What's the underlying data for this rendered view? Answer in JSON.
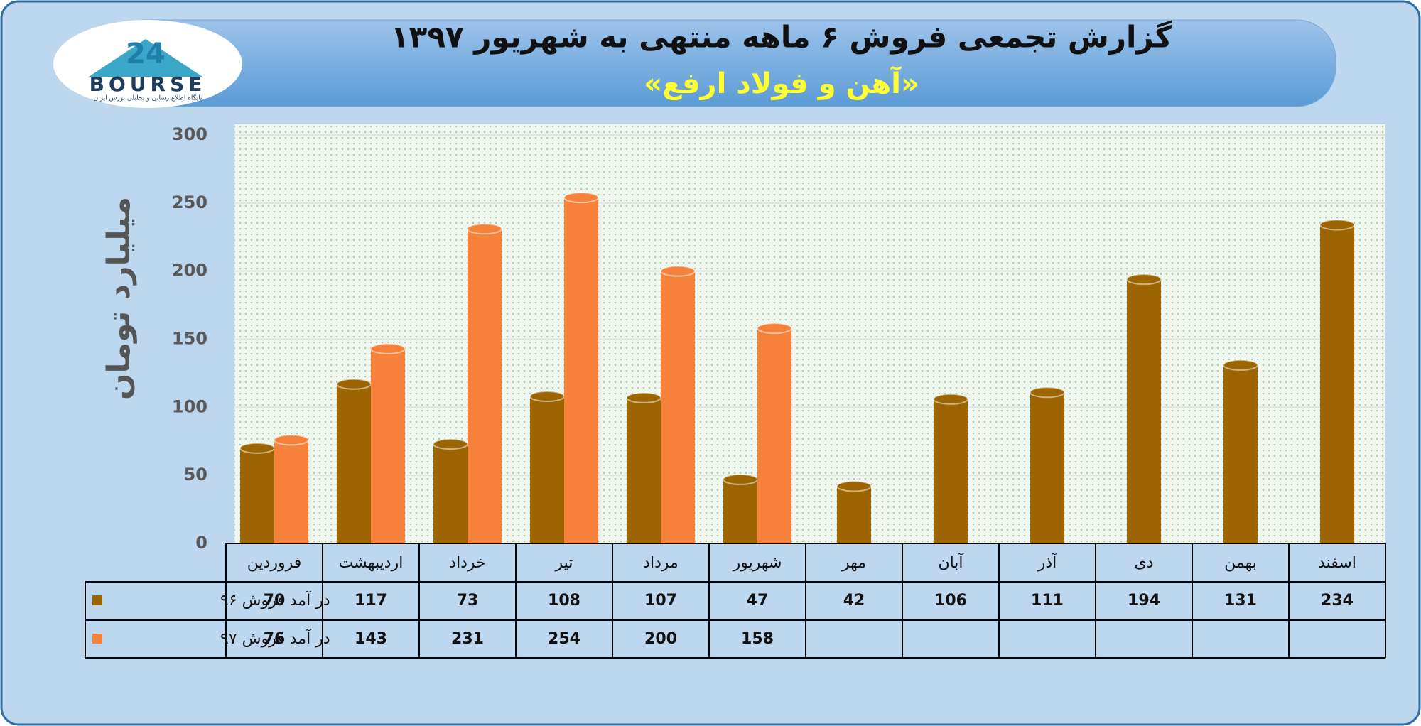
{
  "chart_data": {
    "type": "bar",
    "title": "گزارش تجمعی فروش ۶ ماهه منتهی به شهریور ۱۳۹۷",
    "subtitle": "«آهن و فولاد ارفع»",
    "y_label": "میلیارد تومان",
    "logo": {
      "number": "24",
      "text": "BOURSE",
      "caption": "پایگاه اطلاع رسانی و تحلیلی بورس ایران"
    },
    "categories": [
      "فروردین",
      "اردیبهشت",
      "خرداد",
      "تیر",
      "مرداد",
      "شهریور",
      "مهر",
      "آبان",
      "آذر",
      "دی",
      "بهمن",
      "اسفند"
    ],
    "series": [
      {
        "name": "در آمد فروش ۹۶",
        "color": "#9c6500",
        "values": [
          70,
          117,
          73,
          108,
          107,
          47,
          42,
          106,
          111,
          194,
          131,
          234
        ]
      },
      {
        "name": "در آمد فروش ۹۷",
        "color": "#f6813a",
        "values": [
          76,
          143,
          231,
          254,
          200,
          158,
          null,
          null,
          null,
          null,
          null,
          null
        ]
      }
    ],
    "ylim": [
      0,
      300
    ],
    "yticks": [
      0,
      50,
      100,
      150,
      200,
      250,
      300
    ],
    "grid": true
  }
}
